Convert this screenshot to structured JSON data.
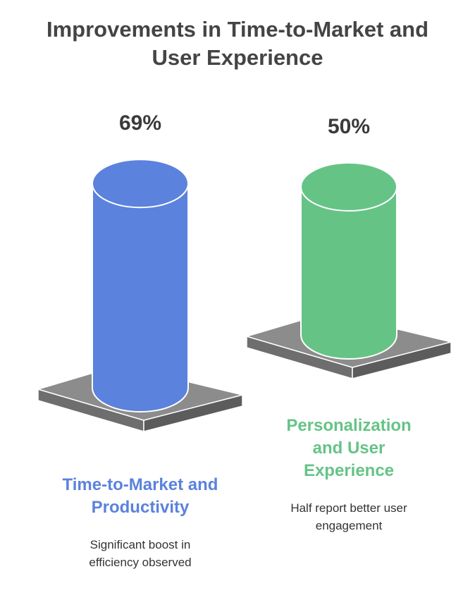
{
  "chart_data": {
    "type": "bar",
    "title": "Improvements in Time-to-Market and User Experience",
    "categories": [
      "Time-to-Market and Productivity",
      "Personalization and User Experience"
    ],
    "descriptions": [
      "Significant boost in efficiency observed",
      "Half report better user engagement"
    ],
    "values": [
      69,
      50
    ],
    "value_labels": [
      "69%",
      "50%"
    ],
    "colors": [
      "#5b82dc",
      "#66c386"
    ]
  }
}
